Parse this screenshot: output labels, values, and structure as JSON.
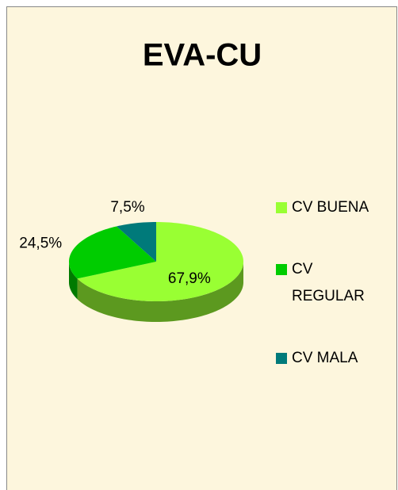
{
  "chart_data": {
    "type": "pie",
    "title": "EVA-CU",
    "categories": [
      "CV BUENA",
      "CV REGULAR",
      "CV MALA"
    ],
    "values": [
      67.9,
      24.5,
      7.5
    ],
    "value_labels": [
      "67,9%",
      "24,5%",
      "7,5%"
    ],
    "colors": [
      "#99ff33",
      "#00cc00",
      "#007a7a"
    ],
    "legend": "right"
  }
}
